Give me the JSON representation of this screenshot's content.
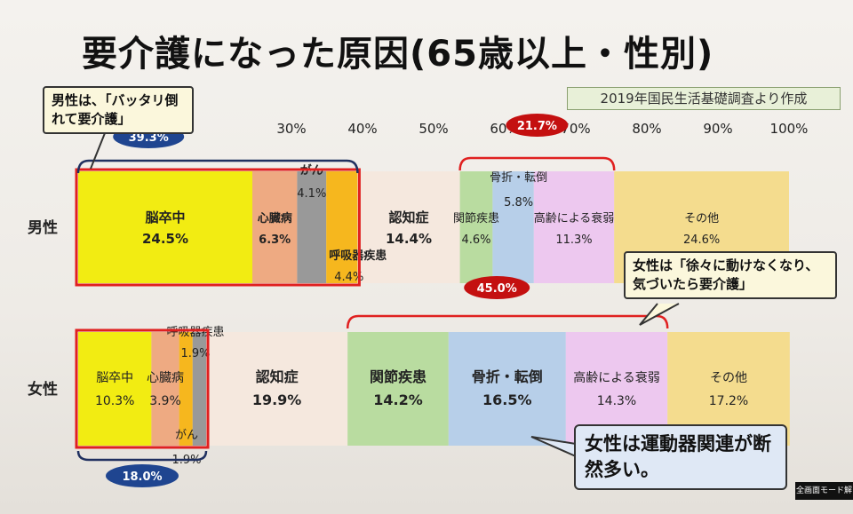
{
  "title": "要介護になった原因(65歳以上・性別)",
  "source_note": "2019年国民生活基礎調査より作成",
  "callouts": {
    "male": "男性は、「バッタリ倒れて要介護」",
    "female": "女性は「徐々に動けなくなり、気づいたら要介護」",
    "musculo": "女性は運動器関連が断然多い。"
  },
  "footer_button": "全画面モード解",
  "colors": {
    "stroke": "#f2ec12",
    "heart": "#eeaa82",
    "cancer": "#999999",
    "respiratory": "#f6b71e",
    "dementia": "#f5e8de",
    "joint": "#b9dca0",
    "fracture": "#b7cfe9",
    "frailty": "#edc8ef",
    "other": "#f4dc8e",
    "highlight": "#e02020",
    "badge_blue": "#1f4590",
    "badge_red": "#c41010"
  },
  "chart_data": {
    "type": "bar",
    "orientation": "horizontal-stacked-100",
    "xlim": [
      0,
      100
    ],
    "x_ticks": [
      "30%",
      "40%",
      "50%",
      "60%",
      "70%",
      "80%",
      "90%",
      "100%"
    ],
    "categories": [
      "男性",
      "女性"
    ],
    "series": [
      {
        "group": "男性",
        "segments": [
          {
            "name": "脳卒中",
            "value": 24.5,
            "label": "24.5%",
            "color": "#f2ec12"
          },
          {
            "name": "心臓病",
            "value": 6.3,
            "label": "6.3%",
            "color": "#eeaa82"
          },
          {
            "name": "がん",
            "value": 4.1,
            "label": "4.1%",
            "color": "#999999"
          },
          {
            "name": "呼吸器疾患",
            "value": 4.4,
            "label": "4.4%",
            "color": "#f6b71e"
          },
          {
            "name": "認知症",
            "value": 14.4,
            "label": "14.4%",
            "color": "#f5e8de"
          },
          {
            "name": "関節疾患",
            "value": 4.6,
            "label": "4.6%",
            "color": "#b9dca0"
          },
          {
            "name": "骨折・転倒",
            "value": 5.8,
            "label": "5.8%",
            "color": "#b7cfe9"
          },
          {
            "name": "高齢による衰弱",
            "value": 11.3,
            "label": "11.3%",
            "color": "#edc8ef"
          },
          {
            "name": "その他",
            "value": 24.6,
            "label": "24.6%",
            "color": "#f4dc8e"
          }
        ]
      },
      {
        "group": "女性",
        "segments": [
          {
            "name": "脳卒中",
            "value": 10.3,
            "label": "10.3%",
            "color": "#f2ec12"
          },
          {
            "name": "心臓病",
            "value": 3.9,
            "label": "3.9%",
            "color": "#eeaa82"
          },
          {
            "name": "呼吸器疾患",
            "value": 1.9,
            "label": "1.9%",
            "color": "#f6b71e"
          },
          {
            "name": "がん",
            "value": 1.9,
            "label": "1.9%",
            "color": "#999999"
          },
          {
            "name": "認知症",
            "value": 19.9,
            "label": "19.9%",
            "color": "#f5e8de"
          },
          {
            "name": "関節疾患",
            "value": 14.2,
            "label": "14.2%",
            "color": "#b9dca0"
          },
          {
            "name": "骨折・転倒",
            "value": 16.5,
            "label": "16.5%",
            "color": "#b7cfe9"
          },
          {
            "name": "高齢による衰弱",
            "value": 14.3,
            "label": "14.3%",
            "color": "#edc8ef"
          },
          {
            "name": "その他",
            "value": 17.2,
            "label": "17.2%",
            "color": "#f4dc8e"
          }
        ]
      }
    ],
    "annotations": {
      "male_circulatory_total": "39.3%",
      "male_musculo_total": "21.7%",
      "female_musculo_total": "45.0%",
      "female_circulatory_total": "18.0%"
    }
  }
}
